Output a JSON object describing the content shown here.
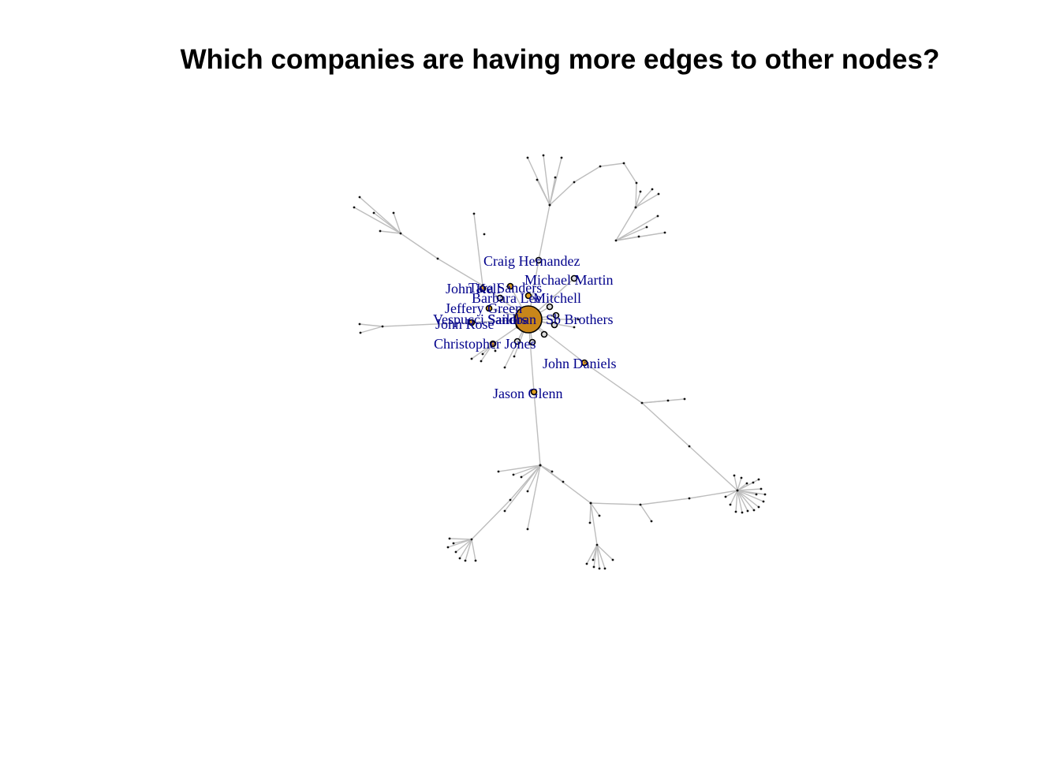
{
  "title": "Which companies are having more edges to other nodes?",
  "colors": {
    "edge": "#bdbdbd",
    "label": "#00008b",
    "hub": "#c8861a",
    "company": "#e0a020",
    "person": "#dddddd"
  },
  "labels": [
    "Craig Hernandez",
    "Michael Martin",
    "John Kell",
    "Tara Sanders",
    "Barbara Lee",
    "Mitchell",
    "Jeffery Green",
    "Vespucci Sailors",
    "John Rose",
    "Sandban",
    "Sb Brothers",
    "Christopher Jones",
    "John Daniels",
    "Jason Glenn"
  ]
}
